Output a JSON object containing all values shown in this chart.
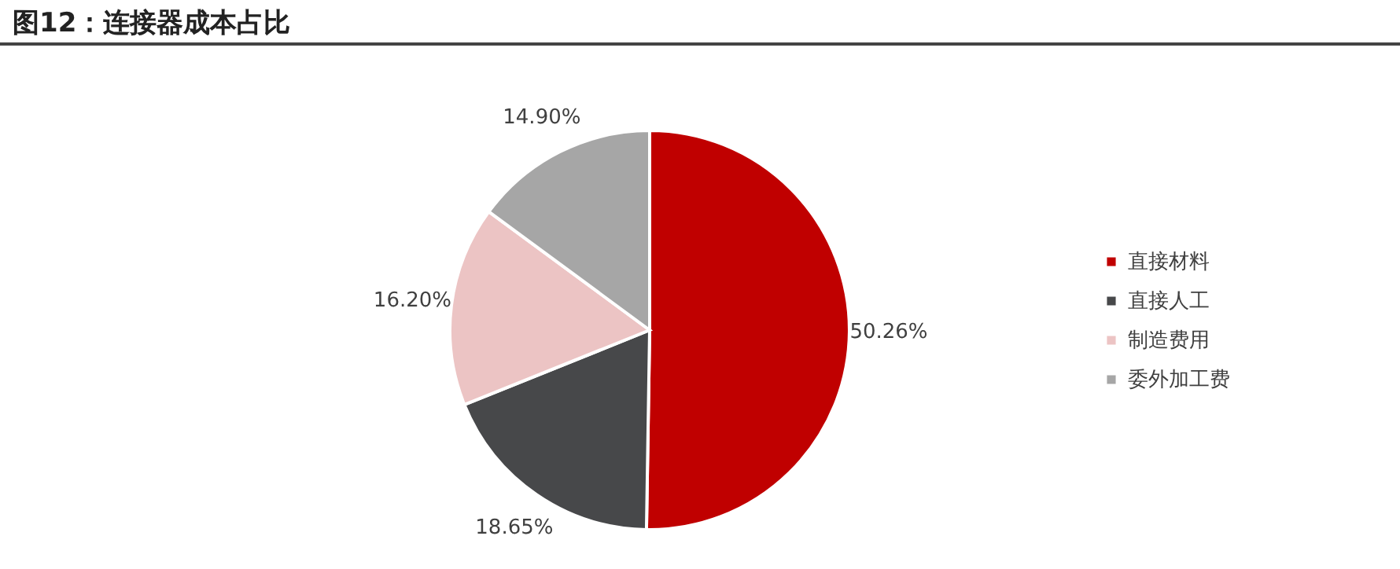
{
  "chart_data": {
    "type": "pie",
    "title": "图12：连接器成本占比",
    "categories": [
      "直接材料",
      "直接人工",
      "制造费用",
      "委外加工费"
    ],
    "values": [
      50.26,
      18.65,
      16.2,
      14.9
    ],
    "value_labels": [
      "50.26%",
      "18.65%",
      "16.20%",
      "14.90%"
    ],
    "colors": [
      "#c00000",
      "#47484a",
      "#ecc4c4",
      "#a6a6a6"
    ],
    "legend": "right"
  }
}
